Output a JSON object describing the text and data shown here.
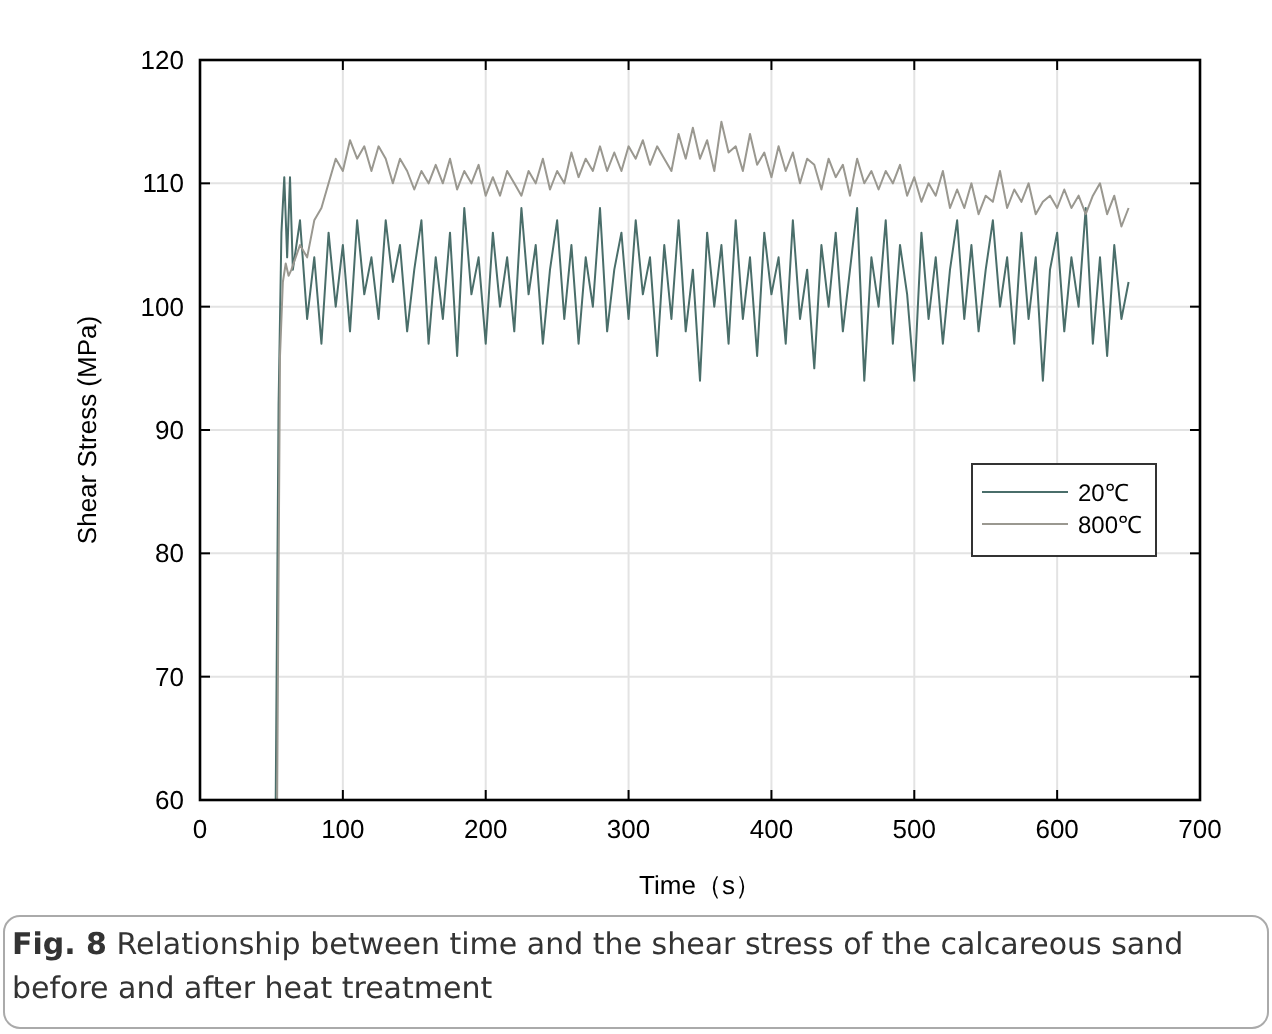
{
  "chart_data": {
    "type": "line",
    "xlabel": "Time（s）",
    "ylabel": "Shear Stress (MPa)",
    "xlim": [
      0,
      700
    ],
    "ylim": [
      60,
      120
    ],
    "xticks": [
      0,
      100,
      200,
      300,
      400,
      500,
      600,
      700
    ],
    "yticks": [
      60,
      70,
      80,
      90,
      100,
      110,
      120
    ],
    "grid": true,
    "legend": "right",
    "marker": "none",
    "line_style": "solid",
    "annotations": [
      "Fig. 8  Relationship between time and the shear stress of the calcareous sand before and after heat treatment"
    ],
    "series": [
      {
        "name": "20℃",
        "color": "#4a6e6a",
        "x": [
          53,
          55,
          57,
          59,
          61,
          63,
          65,
          70,
          75,
          80,
          85,
          90,
          95,
          100,
          105,
          110,
          115,
          120,
          125,
          130,
          135,
          140,
          145,
          150,
          155,
          160,
          165,
          170,
          175,
          180,
          185,
          190,
          195,
          200,
          205,
          210,
          215,
          220,
          225,
          230,
          235,
          240,
          245,
          250,
          255,
          260,
          265,
          270,
          275,
          280,
          285,
          290,
          295,
          300,
          305,
          310,
          315,
          320,
          325,
          330,
          335,
          340,
          345,
          350,
          355,
          360,
          365,
          370,
          375,
          380,
          385,
          390,
          395,
          400,
          405,
          410,
          415,
          420,
          425,
          430,
          435,
          440,
          445,
          450,
          455,
          460,
          465,
          470,
          475,
          480,
          485,
          490,
          495,
          500,
          505,
          510,
          515,
          520,
          525,
          530,
          535,
          540,
          545,
          550,
          555,
          560,
          565,
          570,
          575,
          580,
          585,
          590,
          595,
          600,
          605,
          610,
          615,
          620,
          625,
          630,
          635,
          640,
          645,
          650
        ],
        "values": [
          60,
          92,
          106,
          110.5,
          104,
          110.5,
          103,
          107,
          99,
          104,
          97,
          106,
          100,
          105,
          98,
          107,
          101,
          104,
          99,
          107,
          102,
          105,
          98,
          103,
          107,
          97,
          104,
          99,
          106,
          96,
          108,
          101,
          104,
          97,
          106,
          100,
          104,
          98,
          108,
          101,
          105,
          97,
          103,
          107,
          99,
          105,
          97,
          104,
          100,
          108,
          98,
          103,
          106,
          99,
          107,
          101,
          104,
          96,
          105,
          99,
          107,
          98,
          103,
          94,
          106,
          100,
          105,
          97,
          107,
          99,
          104,
          96,
          106,
          101,
          104,
          97,
          107,
          99,
          103,
          95,
          105,
          100,
          106,
          98,
          103,
          108,
          94,
          104,
          100,
          107,
          97,
          105,
          101,
          94,
          106,
          99,
          104,
          97,
          103,
          107,
          99,
          105,
          98,
          103,
          107,
          100,
          104,
          97,
          106,
          99,
          104,
          94,
          103,
          106,
          98,
          104,
          100,
          108,
          97,
          104,
          96,
          105,
          99,
          102
        ]
      },
      {
        "name": "800℃",
        "color": "#9a9890",
        "x": [
          54,
          56,
          58,
          60,
          62,
          64,
          70,
          75,
          80,
          85,
          90,
          95,
          100,
          105,
          110,
          115,
          120,
          125,
          130,
          135,
          140,
          145,
          150,
          155,
          160,
          165,
          170,
          175,
          180,
          185,
          190,
          195,
          200,
          205,
          210,
          215,
          220,
          225,
          230,
          235,
          240,
          245,
          250,
          255,
          260,
          265,
          270,
          275,
          280,
          285,
          290,
          295,
          300,
          305,
          310,
          315,
          320,
          325,
          330,
          335,
          340,
          345,
          350,
          355,
          360,
          365,
          370,
          375,
          380,
          385,
          390,
          395,
          400,
          405,
          410,
          415,
          420,
          425,
          430,
          435,
          440,
          445,
          450,
          455,
          460,
          465,
          470,
          475,
          480,
          485,
          490,
          495,
          500,
          505,
          510,
          515,
          520,
          525,
          530,
          535,
          540,
          545,
          550,
          555,
          560,
          565,
          570,
          575,
          580,
          585,
          590,
          595,
          600,
          605,
          610,
          615,
          620,
          625,
          630,
          635,
          640,
          645,
          650
        ],
        "values": [
          60,
          96,
          102,
          103.5,
          102.5,
          103,
          105,
          104,
          107,
          108,
          110,
          112,
          111,
          113.5,
          112,
          113,
          111,
          113,
          112,
          110,
          112,
          111,
          109.5,
          111,
          110,
          111.5,
          110,
          112,
          109.5,
          111,
          110,
          111.5,
          109,
          110.5,
          109,
          111,
          110,
          109,
          111,
          110,
          112,
          109.5,
          111,
          110,
          112.5,
          110.5,
          112,
          111,
          113,
          111,
          112.5,
          111,
          113,
          112,
          113.5,
          111.5,
          113,
          112,
          111,
          114,
          112,
          114.5,
          112,
          113.5,
          111,
          115,
          112.5,
          113,
          111,
          114,
          111.5,
          112.5,
          110.5,
          113,
          111,
          112.5,
          110,
          112,
          111.5,
          109.5,
          112,
          110.5,
          111.5,
          109,
          112,
          110,
          111,
          109.5,
          111,
          110,
          111.5,
          109,
          110.5,
          108.5,
          110,
          109,
          111,
          108,
          109.5,
          108,
          110,
          107.5,
          109,
          108.5,
          111,
          108,
          109.5,
          108.5,
          110,
          107.5,
          108.5,
          109,
          108,
          109.5,
          108,
          109,
          107.5,
          109,
          110,
          107.5,
          109,
          106.5,
          108
        ]
      }
    ]
  }
}
